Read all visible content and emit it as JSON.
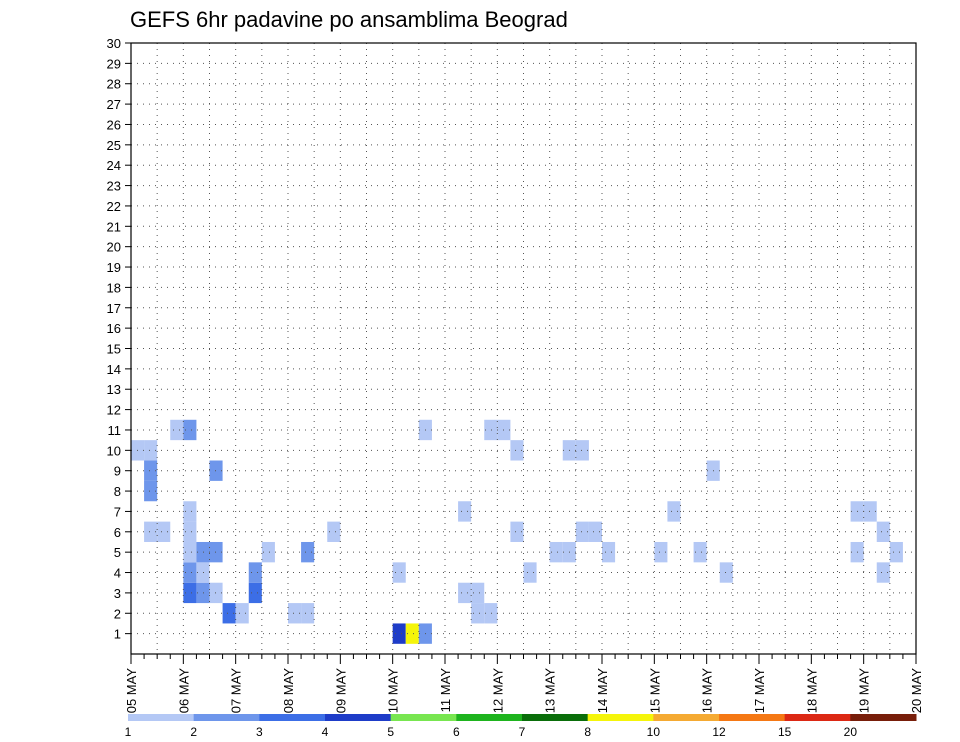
{
  "chart_data": {
    "type": "heatmap",
    "title": "GEFS 6hr padavine po ansamblima Beograd",
    "xlabel": "",
    "ylabel": "",
    "y_ticks": [
      1,
      2,
      3,
      4,
      5,
      6,
      7,
      8,
      9,
      10,
      11,
      12,
      13,
      14,
      15,
      16,
      17,
      18,
      19,
      20,
      21,
      22,
      23,
      24,
      25,
      26,
      27,
      28,
      29,
      30
    ],
    "x_ticks": [
      "05 MAY",
      "06 MAY",
      "07 MAY",
      "08 MAY",
      "09 MAY",
      "10 MAY",
      "11 MAY",
      "12 MAY",
      "13 MAY",
      "14 MAY",
      "15 MAY",
      "16 MAY",
      "17 MAY",
      "18 MAY",
      "19 MAY",
      "20 MAY"
    ],
    "grid": true,
    "legend": {
      "placement": "bottom",
      "thresholds": [
        "1",
        "2",
        "3",
        "4",
        "5",
        "6",
        "7",
        "8",
        "10",
        "12",
        "15",
        "20"
      ],
      "colors": [
        "#b4c8f5",
        "#6e96eb",
        "#3c6ee6",
        "#1e3cc8",
        "#78e650",
        "#1eb41e",
        "#0a6e0a",
        "#f5f50a",
        "#f5aa32",
        "#f57814",
        "#dc2814",
        "#781e0a"
      ]
    },
    "x_steps": 60,
    "y_range": [
      0,
      30
    ],
    "cells": [
      {
        "x": 20,
        "y": 0,
        "v": 4
      },
      {
        "x": 21,
        "y": 0,
        "v": 8
      },
      {
        "x": 22,
        "y": 0,
        "v": 2
      },
      {
        "x": 7,
        "y": 1,
        "v": 3
      },
      {
        "x": 8,
        "y": 1,
        "v": 1
      },
      {
        "x": 12,
        "y": 1,
        "v": 1
      },
      {
        "x": 13,
        "y": 1,
        "v": 1
      },
      {
        "x": 26,
        "y": 1,
        "v": 1
      },
      {
        "x": 27,
        "y": 1,
        "v": 1
      },
      {
        "x": 4,
        "y": 2,
        "v": 3
      },
      {
        "x": 5,
        "y": 2,
        "v": 2
      },
      {
        "x": 6,
        "y": 2,
        "v": 1
      },
      {
        "x": 9,
        "y": 2,
        "v": 3
      },
      {
        "x": 25,
        "y": 2,
        "v": 1
      },
      {
        "x": 26,
        "y": 2,
        "v": 1
      },
      {
        "x": 4,
        "y": 3,
        "v": 2
      },
      {
        "x": 5,
        "y": 3,
        "v": 1
      },
      {
        "x": 9,
        "y": 3,
        "v": 2
      },
      {
        "x": 20,
        "y": 3,
        "v": 1
      },
      {
        "x": 30,
        "y": 3,
        "v": 1
      },
      {
        "x": 45,
        "y": 3,
        "v": 1
      },
      {
        "x": 57,
        "y": 3,
        "v": 1
      },
      {
        "x": 4,
        "y": 4,
        "v": 1
      },
      {
        "x": 5,
        "y": 4,
        "v": 2
      },
      {
        "x": 6,
        "y": 4,
        "v": 2
      },
      {
        "x": 10,
        "y": 4,
        "v": 1
      },
      {
        "x": 13,
        "y": 4,
        "v": 2
      },
      {
        "x": 32,
        "y": 4,
        "v": 1
      },
      {
        "x": 33,
        "y": 4,
        "v": 1
      },
      {
        "x": 36,
        "y": 4,
        "v": 1
      },
      {
        "x": 40,
        "y": 4,
        "v": 1
      },
      {
        "x": 43,
        "y": 4,
        "v": 1
      },
      {
        "x": 55,
        "y": 4,
        "v": 1
      },
      {
        "x": 58,
        "y": 4,
        "v": 1
      },
      {
        "x": 1,
        "y": 5,
        "v": 1
      },
      {
        "x": 2,
        "y": 5,
        "v": 1
      },
      {
        "x": 4,
        "y": 5,
        "v": 1
      },
      {
        "x": 15,
        "y": 5,
        "v": 1
      },
      {
        "x": 29,
        "y": 5,
        "v": 1
      },
      {
        "x": 34,
        "y": 5,
        "v": 1
      },
      {
        "x": 35,
        "y": 5,
        "v": 1
      },
      {
        "x": 57,
        "y": 5,
        "v": 1
      },
      {
        "x": 4,
        "y": 6,
        "v": 1
      },
      {
        "x": 25,
        "y": 6,
        "v": 1
      },
      {
        "x": 41,
        "y": 6,
        "v": 1
      },
      {
        "x": 55,
        "y": 6,
        "v": 1
      },
      {
        "x": 56,
        "y": 6,
        "v": 1
      },
      {
        "x": 1,
        "y": 7,
        "v": 2
      },
      {
        "x": 1,
        "y": 8,
        "v": 2
      },
      {
        "x": 6,
        "y": 8,
        "v": 2
      },
      {
        "x": 44,
        "y": 8,
        "v": 1
      },
      {
        "x": 1,
        "y": 9,
        "v": 1
      },
      {
        "x": 0,
        "y": 9,
        "v": 1
      },
      {
        "x": 29,
        "y": 9,
        "v": 1
      },
      {
        "x": 33,
        "y": 9,
        "v": 1
      },
      {
        "x": 34,
        "y": 9,
        "v": 1
      },
      {
        "x": 3,
        "y": 10,
        "v": 1
      },
      {
        "x": 4,
        "y": 10,
        "v": 2
      },
      {
        "x": 22,
        "y": 10,
        "v": 1
      },
      {
        "x": 27,
        "y": 10,
        "v": 1
      },
      {
        "x": 28,
        "y": 10,
        "v": 1
      }
    ]
  }
}
